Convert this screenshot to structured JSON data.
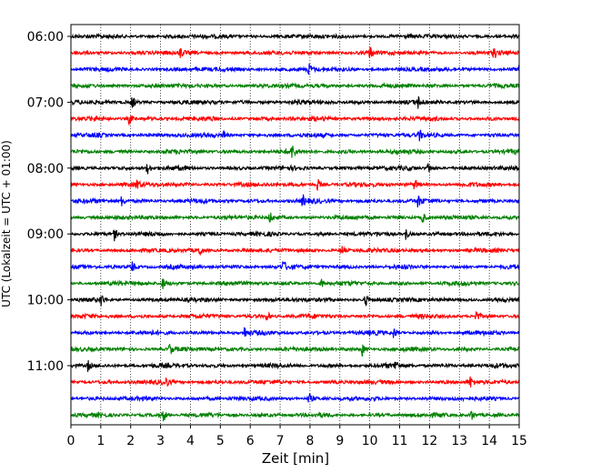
{
  "chart_data": {
    "type": "line",
    "title": "",
    "xlabel": "Zeit  [min]",
    "ylabel": "UTC (Lokalzeit = UTC + 01:00)",
    "xlim": [
      0,
      15
    ],
    "x_ticks": [
      "0",
      "1",
      "2",
      "3",
      "4",
      "5",
      "6",
      "7",
      "8",
      "9",
      "10",
      "11",
      "12",
      "13",
      "14",
      "15"
    ],
    "y_tick_labels": [
      {
        "label": "06:00",
        "row": 0
      },
      {
        "label": "07:00",
        "row": 4
      },
      {
        "label": "08:00",
        "row": 8
      },
      {
        "label": "09:00",
        "row": 12
      },
      {
        "label": "10:00",
        "row": 16
      },
      {
        "label": "11:00",
        "row": 20
      }
    ],
    "row_interval_minutes": 15,
    "row_count": 24,
    "grid": {
      "x": true,
      "y": false,
      "style": "dotted"
    },
    "colors": [
      "#000000",
      "#ff0000",
      "#0000ff",
      "#008000"
    ],
    "events": [
      {
        "row": 1,
        "t": [
          3.65,
          10.0,
          14.15
        ]
      },
      {
        "row": 2,
        "t": [
          7.95,
          15.0
        ]
      },
      {
        "row": 4,
        "t": [
          2.05,
          11.6
        ]
      },
      {
        "row": 5,
        "t": [
          1.95
        ]
      },
      {
        "row": 6,
        "t": [
          5.1,
          11.65
        ]
      },
      {
        "row": 7,
        "t": [
          7.4
        ]
      },
      {
        "row": 8,
        "t": [
          2.55,
          11.95
        ]
      },
      {
        "row": 9,
        "t": [
          2.2,
          8.25,
          11.5
        ]
      },
      {
        "row": 10,
        "t": [
          1.7,
          7.75,
          11.6
        ]
      },
      {
        "row": 11,
        "t": [
          6.65,
          11.75
        ]
      },
      {
        "row": 12,
        "t": [
          1.45,
          11.2
        ]
      },
      {
        "row": 13,
        "t": [
          4.3,
          9.05
        ]
      },
      {
        "row": 14,
        "t": [
          2.05,
          7.1
        ]
      },
      {
        "row": 15,
        "t": [
          3.05,
          8.35
        ]
      },
      {
        "row": 16,
        "t": [
          1.0,
          9.85
        ]
      },
      {
        "row": 17,
        "t": [
          6.55,
          13.55
        ]
      },
      {
        "row": 18,
        "t": [
          5.8,
          10.8
        ]
      },
      {
        "row": 19,
        "t": [
          3.3,
          9.75
        ]
      },
      {
        "row": 20,
        "t": [
          0.55,
          10.85
        ]
      },
      {
        "row": 21,
        "t": [
          3.15,
          13.35
        ]
      },
      {
        "row": 22,
        "t": [
          7.95
        ]
      },
      {
        "row": 23,
        "t": [
          3.1,
          13.4
        ]
      }
    ]
  }
}
